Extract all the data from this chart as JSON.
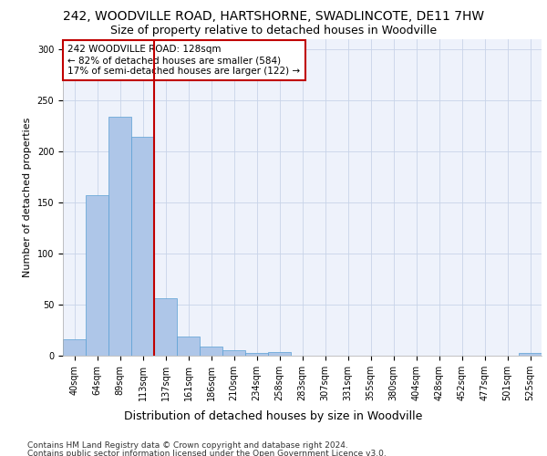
{
  "title1": "242, WOODVILLE ROAD, HARTSHORNE, SWADLINCOTE, DE11 7HW",
  "title2": "Size of property relative to detached houses in Woodville",
  "xlabel": "Distribution of detached houses by size in Woodville",
  "ylabel": "Number of detached properties",
  "bins": [
    "40sqm",
    "64sqm",
    "89sqm",
    "113sqm",
    "137sqm",
    "161sqm",
    "186sqm",
    "210sqm",
    "234sqm",
    "258sqm",
    "283sqm",
    "307sqm",
    "331sqm",
    "355sqm",
    "380sqm",
    "404sqm",
    "428sqm",
    "452sqm",
    "477sqm",
    "501sqm",
    "525sqm"
  ],
  "values": [
    16,
    157,
    234,
    214,
    56,
    19,
    9,
    5,
    3,
    4,
    0,
    0,
    0,
    0,
    0,
    0,
    0,
    0,
    0,
    0,
    3
  ],
  "bar_color": "#aec6e8",
  "bar_edge_color": "#5a9fd4",
  "highlight_color": "#c00000",
  "property_bin_index": 3,
  "annotation_text": "242 WOODVILLE ROAD: 128sqm\n← 82% of detached houses are smaller (584)\n17% of semi-detached houses are larger (122) →",
  "ylim": [
    0,
    310
  ],
  "yticks": [
    0,
    50,
    100,
    150,
    200,
    250,
    300
  ],
  "footnote1": "Contains HM Land Registry data © Crown copyright and database right 2024.",
  "footnote2": "Contains public sector information licensed under the Open Government Licence v3.0.",
  "background_color": "#eef2fb",
  "grid_color": "#c8d4e8",
  "title1_fontsize": 10,
  "title2_fontsize": 9,
  "xlabel_fontsize": 9,
  "ylabel_fontsize": 8,
  "tick_fontsize": 7,
  "annotation_fontsize": 7.5,
  "footnote_fontsize": 6.5
}
